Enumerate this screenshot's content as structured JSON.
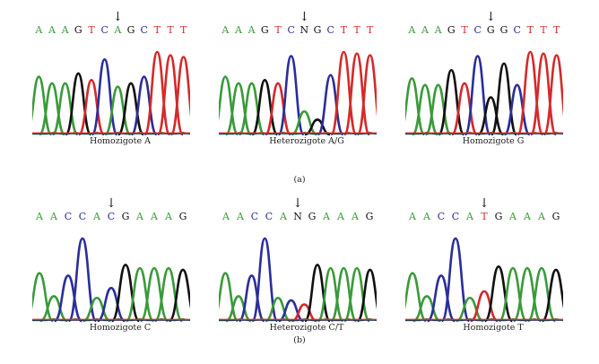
{
  "colors": {
    "A": "#3a9a3a",
    "C": "#2b2e9a",
    "G": "#111111",
    "T": "#d42a2a",
    "N": "#111111"
  },
  "arrow_glyph": "↓",
  "rows": [
    {
      "label": "(a)",
      "panels": [
        {
          "caption": "Homozigote A",
          "sequence": [
            "A",
            "A",
            "A",
            "G",
            "T",
            "C",
            "A",
            "G",
            "C",
            "T",
            "T",
            "T"
          ],
          "variant_index": 6,
          "peaks": [
            [
              "A",
              0.7
            ],
            [
              "A",
              0.62
            ],
            [
              "A",
              0.62
            ],
            [
              "G",
              0.74
            ],
            [
              "T",
              0.66
            ],
            [
              "C",
              0.91
            ],
            [
              "A",
              0.58
            ],
            [
              "G",
              0.62
            ],
            [
              "C",
              0.7
            ],
            [
              "T",
              1.0
            ],
            [
              "T",
              0.96
            ],
            [
              "T",
              0.94
            ]
          ]
        },
        {
          "caption": "Heterozigote A/G",
          "sequence": [
            "A",
            "A",
            "A",
            "G",
            "T",
            "C",
            "N",
            "G",
            "C",
            "T",
            "T",
            "T"
          ],
          "variant_index": 6,
          "peaks": [
            [
              "A",
              0.7
            ],
            [
              "A",
              0.62
            ],
            [
              "A",
              0.62
            ],
            [
              "G",
              0.66
            ],
            [
              "T",
              0.62
            ],
            [
              "C",
              0.95
            ],
            [
              "A",
              0.28
            ],
            [
              "G",
              0.18
            ],
            [
              "C",
              0.72
            ],
            [
              "T",
              1.0
            ],
            [
              "T",
              0.98
            ],
            [
              "T",
              0.96
            ]
          ]
        },
        {
          "caption": "Homozigote G",
          "sequence": [
            "A",
            "A",
            "A",
            "G",
            "T",
            "C",
            "G",
            "G",
            "C",
            "T",
            "T",
            "T"
          ],
          "variant_index": 6,
          "peaks": [
            [
              "A",
              0.68
            ],
            [
              "A",
              0.6
            ],
            [
              "A",
              0.6
            ],
            [
              "G",
              0.78
            ],
            [
              "T",
              0.62
            ],
            [
              "C",
              0.95
            ],
            [
              "G",
              0.45
            ],
            [
              "G",
              0.86
            ],
            [
              "C",
              0.6
            ],
            [
              "T",
              1.0
            ],
            [
              "T",
              0.98
            ],
            [
              "T",
              0.96
            ]
          ]
        }
      ]
    },
    {
      "label": "(b)",
      "panels": [
        {
          "caption": "Homozigote C",
          "sequence": [
            "A",
            "A",
            "C",
            "C",
            "A",
            "C",
            "G",
            "A",
            "A",
            "A",
            "G"
          ],
          "variant_index": 5,
          "peaks": [
            [
              "A",
              0.58
            ],
            [
              "A",
              0.3
            ],
            [
              "C",
              0.55
            ],
            [
              "C",
              1.0
            ],
            [
              "A",
              0.28
            ],
            [
              "C",
              0.4
            ],
            [
              "G",
              0.68
            ],
            [
              "A",
              0.64
            ],
            [
              "A",
              0.64
            ],
            [
              "A",
              0.64
            ],
            [
              "G",
              0.62
            ]
          ]
        },
        {
          "caption": "Heterozigote C/T",
          "sequence": [
            "A",
            "A",
            "C",
            "C",
            "A",
            "N",
            "G",
            "A",
            "A",
            "A",
            "G"
          ],
          "variant_index": 5,
          "peaks": [
            [
              "A",
              0.58
            ],
            [
              "A",
              0.3
            ],
            [
              "C",
              0.55
            ],
            [
              "C",
              1.0
            ],
            [
              "A",
              0.28
            ],
            [
              "C",
              0.25
            ],
            [
              "T",
              0.2
            ],
            [
              "G",
              0.68
            ],
            [
              "A",
              0.64
            ],
            [
              "A",
              0.64
            ],
            [
              "A",
              0.64
            ],
            [
              "G",
              0.62
            ]
          ]
        },
        {
          "caption": "Homozigote T",
          "sequence": [
            "A",
            "A",
            "C",
            "C",
            "A",
            "T",
            "G",
            "A",
            "A",
            "A",
            "G"
          ],
          "variant_index": 5,
          "peaks": [
            [
              "A",
              0.58
            ],
            [
              "A",
              0.3
            ],
            [
              "C",
              0.55
            ],
            [
              "C",
              1.0
            ],
            [
              "A",
              0.28
            ],
            [
              "T",
              0.36
            ],
            [
              "G",
              0.66
            ],
            [
              "A",
              0.64
            ],
            [
              "A",
              0.64
            ],
            [
              "A",
              0.64
            ],
            [
              "G",
              0.62
            ]
          ]
        }
      ]
    }
  ]
}
